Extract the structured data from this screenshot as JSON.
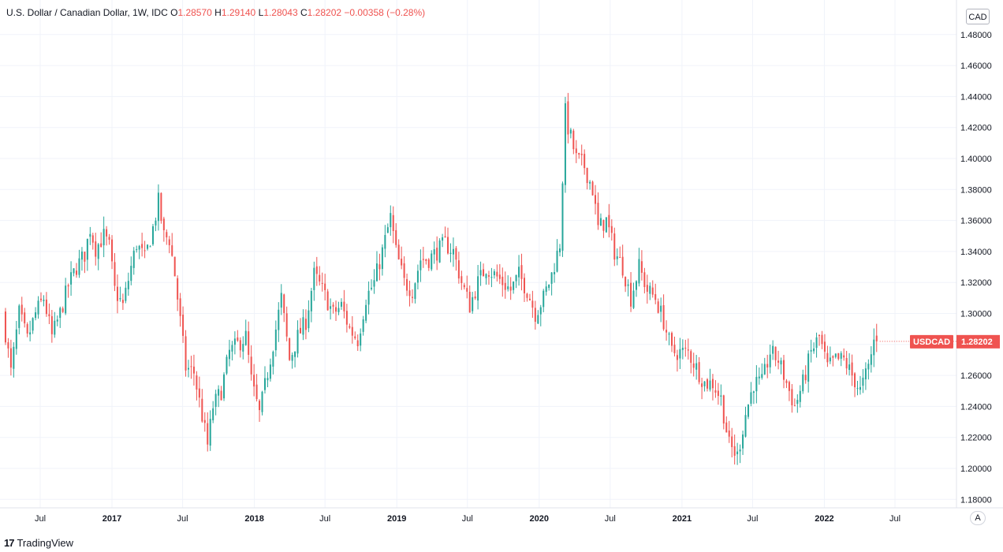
{
  "legend": {
    "title": "U.S. Dollar / Canadian Dollar, 1W, IDC",
    "open_label": "O",
    "open": "1.28570",
    "high_label": "H",
    "high": "1.29140",
    "low_label": "L",
    "low": "1.28043",
    "close_label": "C",
    "close": "1.28202",
    "change": "−0.00358 (−0.28%)"
  },
  "currency_badge": "CAD",
  "auto_button": "A",
  "branding": {
    "logo_mark": "17",
    "name": "TradingView"
  },
  "colors": {
    "up": "#26a69a",
    "down": "#ef5350",
    "grid": "#f0f3fa",
    "axis_text": "#131722"
  },
  "chart_data": {
    "type": "candlestick",
    "symbol": "USDCAD",
    "interval": "1W",
    "price_axis": {
      "range": [
        1.17,
        1.49
      ],
      "ticks": [
        "1.48000",
        "1.46000",
        "1.44000",
        "1.42000",
        "1.40000",
        "1.38000",
        "1.36000",
        "1.34000",
        "1.32000",
        "1.30000",
        "1.28000",
        "1.26000",
        "1.24000",
        "1.22000",
        "1.20000",
        "1.18000"
      ]
    },
    "time_axis": {
      "labels": [
        "Jul",
        "2017",
        "Jul",
        "2018",
        "Jul",
        "2019",
        "Jul",
        "2020",
        "Jul",
        "2021",
        "Jul",
        "2022",
        "Jul"
      ],
      "bold": [
        false,
        true,
        false,
        true,
        false,
        true,
        false,
        true,
        false,
        true,
        false,
        true,
        false
      ],
      "label_dates": [
        "2016-07-01",
        "2017-01-01",
        "2017-07-01",
        "2018-01-01",
        "2018-07-01",
        "2019-01-01",
        "2019-07-01",
        "2020-01-01",
        "2020-07-01",
        "2021-01-01",
        "2021-07-01",
        "2022-01-01",
        "2022-07-01"
      ],
      "range": [
        "2016-04-03",
        "2022-10-15"
      ]
    },
    "last_price_label": {
      "symbol": "USDCAD",
      "price": "1.28202",
      "value": 1.28202
    },
    "path_points": [
      [
        "2016-04-03",
        1.3
      ],
      [
        "2016-04-24",
        1.262
      ],
      [
        "2016-05-15",
        1.3
      ],
      [
        "2016-06-05",
        1.283
      ],
      [
        "2016-06-26",
        1.3
      ],
      [
        "2016-07-17",
        1.31
      ],
      [
        "2016-08-07",
        1.285
      ],
      [
        "2016-08-28",
        1.3
      ],
      [
        "2016-09-18",
        1.318
      ],
      [
        "2016-10-09",
        1.33
      ],
      [
        "2016-10-30",
        1.338
      ],
      [
        "2016-11-13",
        1.355
      ],
      [
        "2016-11-27",
        1.342
      ],
      [
        "2016-12-18",
        1.35
      ],
      [
        "2017-01-01",
        1.343
      ],
      [
        "2017-01-15",
        1.315
      ],
      [
        "2017-02-05",
        1.305
      ],
      [
        "2017-02-26",
        1.33
      ],
      [
        "2017-03-12",
        1.345
      ],
      [
        "2017-04-02",
        1.335
      ],
      [
        "2017-04-23",
        1.355
      ],
      [
        "2017-05-07",
        1.372
      ],
      [
        "2017-05-21",
        1.35
      ],
      [
        "2017-06-04",
        1.348
      ],
      [
        "2017-06-18",
        1.325
      ],
      [
        "2017-07-02",
        1.295
      ],
      [
        "2017-07-16",
        1.265
      ],
      [
        "2017-08-06",
        1.262
      ],
      [
        "2017-09-10",
        1.215
      ],
      [
        "2017-09-24",
        1.24
      ],
      [
        "2017-10-15",
        1.25
      ],
      [
        "2017-11-05",
        1.275
      ],
      [
        "2017-11-26",
        1.28
      ],
      [
        "2017-12-17",
        1.285
      ],
      [
        "2018-01-01",
        1.255
      ],
      [
        "2018-01-21",
        1.235
      ],
      [
        "2018-02-11",
        1.262
      ],
      [
        "2018-03-04",
        1.29
      ],
      [
        "2018-03-18",
        1.31
      ],
      [
        "2018-04-08",
        1.27
      ],
      [
        "2018-04-29",
        1.285
      ],
      [
        "2018-05-20",
        1.295
      ],
      [
        "2018-06-10",
        1.325
      ],
      [
        "2018-07-01",
        1.315
      ],
      [
        "2018-07-29",
        1.3
      ],
      [
        "2018-08-19",
        1.305
      ],
      [
        "2018-09-09",
        1.29
      ],
      [
        "2018-09-30",
        1.283
      ],
      [
        "2018-10-21",
        1.31
      ],
      [
        "2018-11-11",
        1.32
      ],
      [
        "2018-12-02",
        1.34
      ],
      [
        "2018-12-23",
        1.362
      ],
      [
        "2019-01-06",
        1.34
      ],
      [
        "2019-01-27",
        1.32
      ],
      [
        "2019-02-17",
        1.315
      ],
      [
        "2019-03-10",
        1.335
      ],
      [
        "2019-03-31",
        1.335
      ],
      [
        "2019-04-21",
        1.34
      ],
      [
        "2019-05-12",
        1.345
      ],
      [
        "2019-06-02",
        1.34
      ],
      [
        "2019-06-23",
        1.32
      ],
      [
        "2019-07-14",
        1.305
      ],
      [
        "2019-08-04",
        1.32
      ],
      [
        "2019-08-25",
        1.33
      ],
      [
        "2019-09-15",
        1.325
      ],
      [
        "2019-10-06",
        1.32
      ],
      [
        "2019-10-27",
        1.315
      ],
      [
        "2019-11-17",
        1.325
      ],
      [
        "2019-12-08",
        1.315
      ],
      [
        "2019-12-29",
        1.3
      ],
      [
        "2020-01-19",
        1.31
      ],
      [
        "2020-02-09",
        1.325
      ],
      [
        "2020-03-01",
        1.345
      ],
      [
        "2020-03-15",
        1.43
      ],
      [
        "2020-03-22",
        1.42
      ],
      [
        "2020-04-12",
        1.4
      ],
      [
        "2020-05-03",
        1.395
      ],
      [
        "2020-05-24",
        1.38
      ],
      [
        "2020-06-07",
        1.355
      ],
      [
        "2020-06-28",
        1.36
      ],
      [
        "2020-07-19",
        1.34
      ],
      [
        "2020-08-09",
        1.33
      ],
      [
        "2020-08-30",
        1.31
      ],
      [
        "2020-09-20",
        1.33
      ],
      [
        "2020-10-11",
        1.315
      ],
      [
        "2020-11-01",
        1.31
      ],
      [
        "2020-11-22",
        1.295
      ],
      [
        "2020-12-13",
        1.275
      ],
      [
        "2021-01-03",
        1.275
      ],
      [
        "2021-01-24",
        1.275
      ],
      [
        "2021-02-14",
        1.265
      ],
      [
        "2021-03-07",
        1.255
      ],
      [
        "2021-03-28",
        1.255
      ],
      [
        "2021-04-18",
        1.245
      ],
      [
        "2021-05-09",
        1.215
      ],
      [
        "2021-05-30",
        1.208
      ],
      [
        "2021-06-20",
        1.235
      ],
      [
        "2021-07-11",
        1.255
      ],
      [
        "2021-08-01",
        1.255
      ],
      [
        "2021-08-22",
        1.275
      ],
      [
        "2021-09-12",
        1.27
      ],
      [
        "2021-10-03",
        1.255
      ],
      [
        "2021-10-24",
        1.24
      ],
      [
        "2021-11-14",
        1.255
      ],
      [
        "2021-12-05",
        1.275
      ],
      [
        "2021-12-26",
        1.285
      ],
      [
        "2022-01-16",
        1.265
      ],
      [
        "2022-02-06",
        1.27
      ],
      [
        "2022-02-27",
        1.27
      ],
      [
        "2022-03-20",
        1.26
      ],
      [
        "2022-04-10",
        1.25
      ],
      [
        "2022-05-01",
        1.265
      ],
      [
        "2022-05-15",
        1.282
      ]
    ]
  }
}
